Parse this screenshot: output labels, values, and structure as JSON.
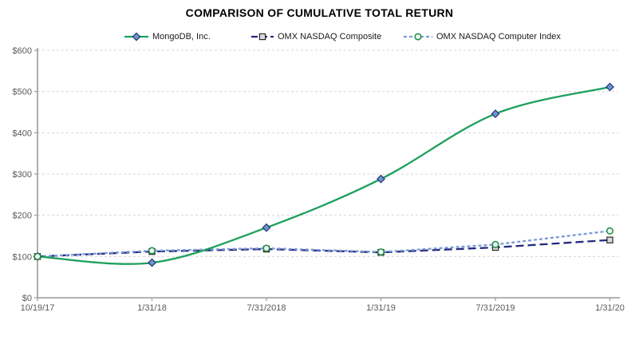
{
  "chart_data": {
    "type": "line",
    "title": "COMPARISON OF CUMULATIVE TOTAL RETURN",
    "categories": [
      "10/19/17",
      "1/31/18",
      "7/31/2018",
      "1/31/19",
      "7/31/2019",
      "1/31/20"
    ],
    "series": [
      {
        "name": "MongoDB, Inc.",
        "values": [
          100,
          85,
          170,
          288,
          446,
          511
        ],
        "line_color": "#1ca05c",
        "line_style": "solid",
        "smooth": true,
        "marker": {
          "shape": "diamond",
          "fill": "#6e93d6",
          "stroke": "#1f3864"
        }
      },
      {
        "name": "OMX NASDAQ Composite",
        "values": [
          100,
          112,
          118,
          110,
          122,
          140
        ],
        "line_color": "#232a7e",
        "line_style": "dashed-long",
        "smooth": false,
        "marker": {
          "shape": "square",
          "fill": "#d9d9d9",
          "stroke": "#262626"
        }
      },
      {
        "name": "OMX NASDAQ Computer Index",
        "values": [
          100,
          114,
          120,
          111,
          129,
          162
        ],
        "line_color": "#7c9bd6",
        "line_style": "dashed-short",
        "smooth": false,
        "marker": {
          "shape": "circle",
          "fill": "#edf6ed",
          "stroke": "#1e8c45"
        }
      }
    ],
    "ylim": [
      0,
      600
    ],
    "ytick_labels": [
      "$0",
      "$100",
      "$200",
      "$300",
      "$400",
      "$500",
      "$600"
    ],
    "xlabel": "",
    "ylabel": "",
    "grid": true,
    "legend_position": "top",
    "axis_color": "#a6a6a6",
    "grid_color": "#d4d4d4",
    "tick_label_color": "#595959"
  }
}
